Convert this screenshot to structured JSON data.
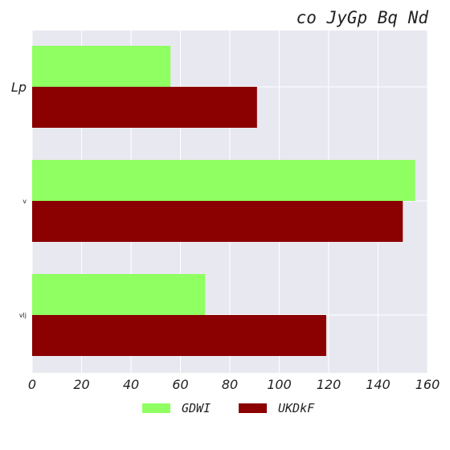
{
  "chart_data": {
    "type": "bar",
    "orientation": "horizontal",
    "title": "co JyGp Bq Nd",
    "xlabel": "",
    "ylabel": "",
    "categories": [
      "Lp",
      "v",
      "vlj"
    ],
    "series": [
      {
        "name": "GDWI",
        "values": [
          56,
          155,
          70
        ],
        "color": "#8fff62"
      },
      {
        "name": "UKDkF",
        "values": [
          91,
          150,
          119
        ],
        "color": "#8b0000"
      }
    ],
    "xlim": [
      0,
      160
    ],
    "xticks": [
      0,
      20,
      40,
      60,
      80,
      100,
      120,
      140,
      160
    ],
    "grid": true,
    "legend_position": "bottom-center",
    "background": "#e8e8f0"
  }
}
